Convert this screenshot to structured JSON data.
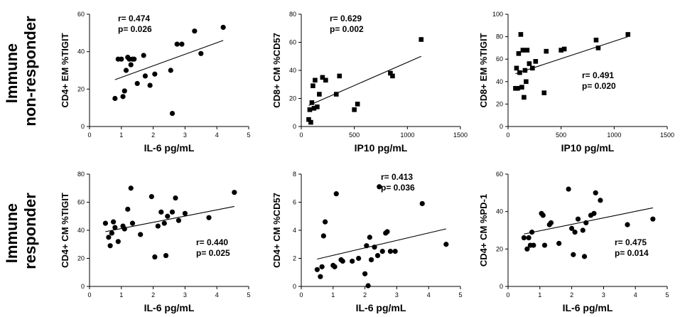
{
  "row_labels": [
    {
      "lines": [
        "Immune",
        "non-responder"
      ]
    },
    {
      "lines": [
        "Immune",
        "responder"
      ]
    }
  ],
  "chart_data": [
    {
      "type": "scatter",
      "marker": "circle",
      "xlabel": "IL-6 pg/mL",
      "ylabel": "CD4+ EM %TIGIT",
      "xlim": [
        0,
        5
      ],
      "ylim": [
        0,
        60
      ],
      "xticks": [
        0,
        1,
        2,
        3,
        4,
        5
      ],
      "yticks": [
        0,
        20,
        40,
        60
      ],
      "x": [
        0.8,
        0.9,
        1.0,
        1.05,
        1.1,
        1.15,
        1.2,
        1.25,
        1.3,
        1.35,
        1.4,
        1.5,
        1.7,
        1.75,
        1.9,
        2.05,
        2.55,
        2.6,
        2.75,
        2.9,
        3.3,
        3.5,
        4.2
      ],
      "y": [
        15,
        36,
        36,
        16,
        19,
        30,
        37,
        36,
        33,
        36,
        36,
        23,
        38,
        27,
        22,
        28,
        30,
        7,
        44,
        44,
        51,
        39,
        53
      ],
      "trend": {
        "x": [
          0.8,
          4.2
        ],
        "y": [
          25,
          46
        ]
      },
      "annotation": [
        "r= 0.474",
        "p= 0.026"
      ],
      "annotation_position": "top-left"
    },
    {
      "type": "scatter",
      "marker": "square",
      "xlabel": "IP10 pg/mL",
      "ylabel": "CD8+ CM %CD57",
      "xlim": [
        0,
        1500
      ],
      "ylim": [
        0,
        80
      ],
      "xticks": [
        0,
        500,
        1000,
        1500
      ],
      "yticks": [
        0,
        20,
        40,
        60,
        80
      ],
      "x": [
        70,
        80,
        90,
        100,
        110,
        120,
        130,
        150,
        170,
        200,
        230,
        330,
        360,
        500,
        530,
        840,
        860,
        1130
      ],
      "y": [
        5,
        12,
        3,
        17,
        29,
        13,
        33,
        14,
        23,
        35,
        33,
        23,
        36,
        12,
        16,
        38,
        36,
        62
      ],
      "trend": {
        "x": [
          70,
          1130
        ],
        "y": [
          15,
          50
        ]
      },
      "annotation": [
        "r= 0.629",
        "p= 0.002"
      ],
      "annotation_position": "top-left"
    },
    {
      "type": "scatter",
      "marker": "square",
      "xlabel": "IP10 pg/mL",
      "ylabel": "CD8+ EM %TIGIT",
      "xlim": [
        0,
        1500
      ],
      "ylim": [
        0,
        100
      ],
      "xticks": [
        0,
        500,
        1000,
        1500
      ],
      "yticks": [
        0,
        20,
        40,
        60,
        80,
        100
      ],
      "x": [
        70,
        80,
        90,
        100,
        110,
        120,
        130,
        140,
        150,
        160,
        170,
        180,
        200,
        230,
        260,
        340,
        360,
        500,
        530,
        830,
        850,
        1130
      ],
      "y": [
        34,
        52,
        34,
        65,
        48,
        82,
        35,
        68,
        26,
        50,
        40,
        68,
        56,
        52,
        58,
        30,
        67,
        68,
        69,
        77,
        70,
        82
      ],
      "trend": {
        "x": [
          70,
          1130
        ],
        "y": [
          47,
          80
        ]
      },
      "annotation": [
        "r= 0.491",
        "p= 0.020"
      ],
      "annotation_position": "right"
    },
    {
      "type": "scatter",
      "marker": "circle",
      "xlabel": "IL-6 pg/mL",
      "ylabel": "CD4+ CM %TIGIT",
      "xlim": [
        0,
        5
      ],
      "ylim": [
        0,
        80
      ],
      "xticks": [
        0,
        1,
        2,
        3,
        4,
        5
      ],
      "yticks": [
        0,
        20,
        40,
        60,
        80
      ],
      "x": [
        0.5,
        0.6,
        0.65,
        0.7,
        0.75,
        0.8,
        0.9,
        1.05,
        1.1,
        1.2,
        1.3,
        1.35,
        1.6,
        1.95,
        2.05,
        2.15,
        2.25,
        2.35,
        2.4,
        2.45,
        2.6,
        2.7,
        2.8,
        3.0,
        3.75,
        4.55
      ],
      "y": [
        45,
        35,
        29,
        38,
        46,
        42,
        32,
        43,
        41,
        55,
        70,
        45,
        37,
        64,
        21,
        43,
        53,
        45,
        22,
        50,
        53,
        63,
        47,
        52,
        49,
        67
      ],
      "trend": {
        "x": [
          0.5,
          4.55
        ],
        "y": [
          39,
          57
        ]
      },
      "annotation": [
        "r= 0.440",
        "p= 0.025"
      ],
      "annotation_position": "bottom-right"
    },
    {
      "type": "scatter",
      "marker": "circle",
      "xlabel": "IL-6 pg/mL",
      "ylabel": "CD4+ CM %CD57",
      "xlim": [
        0,
        5
      ],
      "ylim": [
        0,
        8
      ],
      "xticks": [
        0,
        1,
        2,
        3,
        4,
        5
      ],
      "yticks": [
        0,
        2,
        4,
        6,
        8
      ],
      "x": [
        0.5,
        0.6,
        0.65,
        0.7,
        0.75,
        1.0,
        1.05,
        1.1,
        1.25,
        1.3,
        1.6,
        1.8,
        2.0,
        2.05,
        2.1,
        2.15,
        2.2,
        2.3,
        2.4,
        2.45,
        2.55,
        2.65,
        2.7,
        2.8,
        2.95,
        3.8,
        4.55
      ],
      "y": [
        1.2,
        0.7,
        1.4,
        3.6,
        4.6,
        1.5,
        1.4,
        6.6,
        1.9,
        1.8,
        1.8,
        2.0,
        0.9,
        2.9,
        0.05,
        3.5,
        1.9,
        2.8,
        2.2,
        7.1,
        2.5,
        3.8,
        3.9,
        2.5,
        2.5,
        5.9,
        3.0
      ],
      "trend": {
        "x": [
          0.5,
          4.55
        ],
        "y": [
          1.95,
          4.1
        ]
      },
      "annotation": [
        "r= 0.413",
        "p= 0.036"
      ],
      "annotation_position": "top-right"
    },
    {
      "type": "scatter",
      "marker": "circle",
      "xlabel": "IL-6 pg/mL",
      "ylabel": "CD4+ CM %PD-1",
      "xlim": [
        0,
        5
      ],
      "ylim": [
        0,
        60
      ],
      "xticks": [
        0,
        1,
        2,
        3,
        4,
        5
      ],
      "yticks": [
        0,
        20,
        40,
        60
      ],
      "x": [
        0.5,
        0.6,
        0.65,
        0.7,
        0.75,
        0.8,
        1.05,
        1.1,
        1.15,
        1.3,
        1.35,
        1.6,
        1.9,
        2.0,
        2.05,
        2.1,
        2.2,
        2.35,
        2.4,
        2.45,
        2.6,
        2.7,
        2.75,
        2.9,
        3.75,
        4.55
      ],
      "y": [
        26,
        20,
        26,
        22,
        29,
        22,
        39,
        38,
        22,
        33,
        34,
        23,
        52,
        31,
        17,
        29,
        36,
        30,
        16,
        34,
        38,
        39,
        50,
        46,
        33,
        36
      ],
      "trend": {
        "x": [
          0.5,
          4.55
        ],
        "y": [
          28,
          42
        ]
      },
      "annotation": [
        "r= 0.475",
        "p= 0.014"
      ],
      "annotation_position": "bottom-right"
    }
  ]
}
